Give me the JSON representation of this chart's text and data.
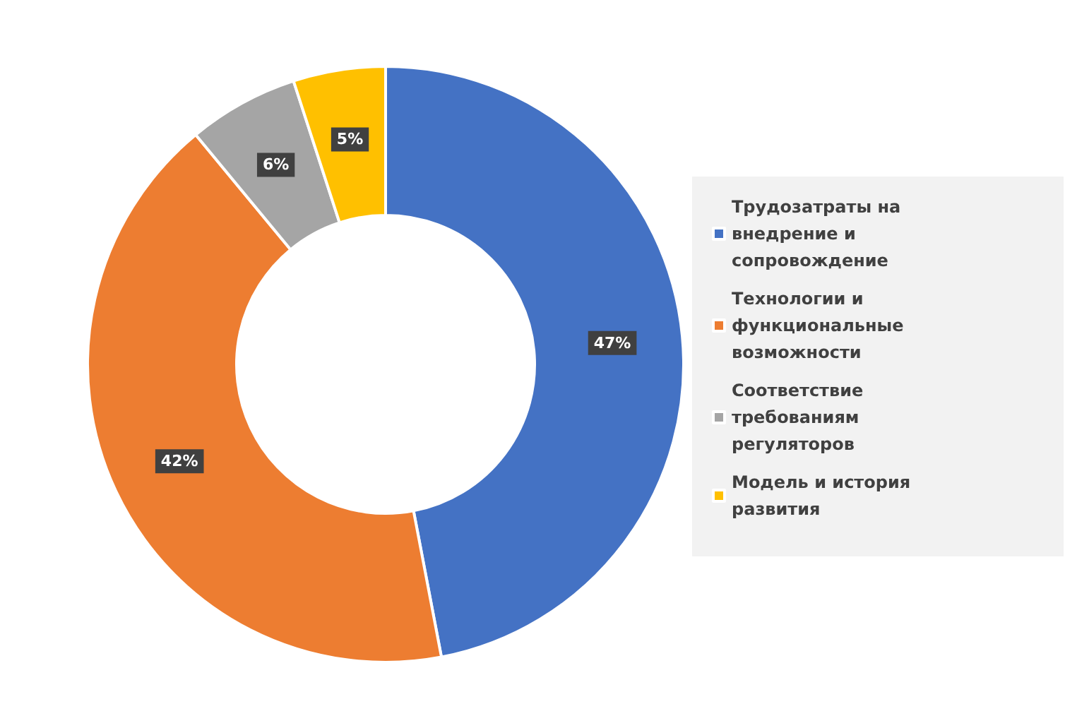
{
  "chart_data": {
    "type": "donut",
    "categories": [
      "Трудозатраты на внедрение и сопровождение",
      "Технологии и функциональные возможности",
      "Соответствие требованиям регуляторов",
      "Модель и история развития"
    ],
    "values": [
      47,
      42,
      6,
      5
    ],
    "colors": [
      "#4472c4",
      "#ed7d31",
      "#a5a5a5",
      "#ffc000"
    ],
    "value_labels": [
      "47%",
      "42%",
      "6%",
      "5%"
    ],
    "legend": "right"
  }
}
